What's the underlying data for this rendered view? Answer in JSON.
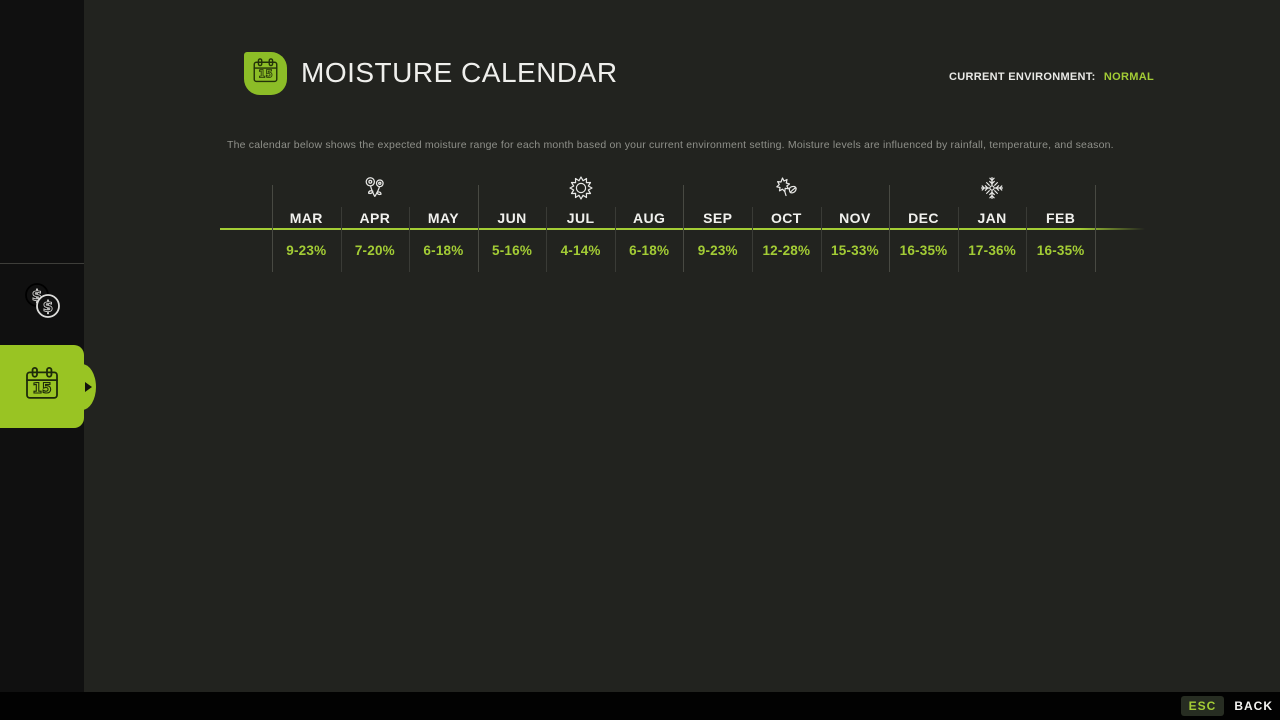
{
  "header": {
    "title": "MOISTURE CALENDAR",
    "icon": "calendar-icon",
    "environment_label": "CURRENT ENVIRONMENT:",
    "environment_value": "NORMAL"
  },
  "description": "The calendar below shows the expected moisture range for each month based on your current environment setting. Moisture levels are influenced by rainfall, temperature, and season.",
  "calendar": {
    "months": [
      "MAR",
      "APR",
      "MAY",
      "JUN",
      "JUL",
      "AUG",
      "SEP",
      "OCT",
      "NOV",
      "DEC",
      "JAN",
      "FEB"
    ],
    "ranges": [
      "9-23%",
      "7-20%",
      "6-18%",
      "5-16%",
      "4-14%",
      "6-18%",
      "9-23%",
      "12-28%",
      "15-33%",
      "16-35%",
      "17-36%",
      "16-35%"
    ],
    "seasons": [
      {
        "name": "spring",
        "icon": "flowers-icon",
        "months": [
          "MAR",
          "APR",
          "MAY"
        ]
      },
      {
        "name": "summer",
        "icon": "sun-icon",
        "months": [
          "JUN",
          "JUL",
          "AUG"
        ]
      },
      {
        "name": "autumn",
        "icon": "leaves-icon",
        "months": [
          "SEP",
          "OCT",
          "NOV"
        ]
      },
      {
        "name": "winter",
        "icon": "snowflake-icon",
        "months": [
          "DEC",
          "JAN",
          "FEB"
        ]
      }
    ]
  },
  "sidebar": {
    "items": [
      {
        "id": "economy",
        "icon": "coins-icon",
        "selected": false
      },
      {
        "id": "moisture-calendar",
        "icon": "calendar-icon",
        "selected": true
      }
    ]
  },
  "footer": {
    "key_label": "ESC",
    "action_label": "BACK"
  },
  "colors": {
    "accent_green": "#a3cc35",
    "tab_green": "#99c423",
    "badge_green": "#8cbd27",
    "background": "#22231f",
    "sidebar": "#101010"
  }
}
